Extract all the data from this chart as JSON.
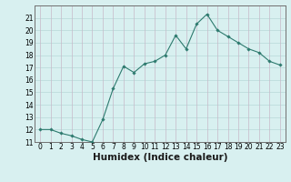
{
  "x": [
    0,
    1,
    2,
    3,
    4,
    5,
    6,
    7,
    8,
    9,
    10,
    11,
    12,
    13,
    14,
    15,
    16,
    17,
    18,
    19,
    20,
    21,
    22,
    23
  ],
  "y": [
    12.0,
    12.0,
    11.7,
    11.5,
    11.2,
    11.0,
    12.8,
    15.3,
    17.1,
    16.6,
    17.3,
    17.5,
    18.0,
    19.6,
    18.5,
    20.5,
    21.3,
    20.0,
    19.5,
    19.0,
    18.5,
    18.2,
    17.5,
    17.2
  ],
  "line_color": "#2d7a6e",
  "marker": "D",
  "marker_size": 1.8,
  "bg_color": "#d8f0f0",
  "grid_horiz_color": "#b8d8d8",
  "grid_vert_color": "#c8b8c8",
  "xlabel": "Humidex (Indice chaleur)",
  "xlabel_style": "bold",
  "ylim": [
    11,
    22
  ],
  "xlim": [
    -0.5,
    23.5
  ],
  "yticks": [
    11,
    12,
    13,
    14,
    15,
    16,
    17,
    18,
    19,
    20,
    21
  ],
  "xticks": [
    0,
    1,
    2,
    3,
    4,
    5,
    6,
    7,
    8,
    9,
    10,
    11,
    12,
    13,
    14,
    15,
    16,
    17,
    18,
    19,
    20,
    21,
    22,
    23
  ],
  "tick_fontsize": 5.5,
  "xlabel_fontsize": 7.5,
  "linewidth": 0.8
}
